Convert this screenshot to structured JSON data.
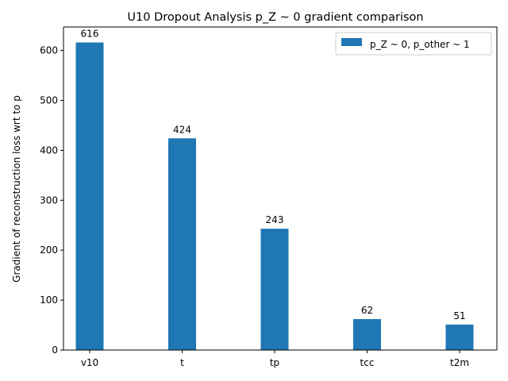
{
  "chart_data": {
    "type": "bar",
    "title": "U10 Dropout Analysis p_Z ~ 0 gradient comparison",
    "xlabel": "",
    "ylabel": "Gradient of reconstruction loss wrt to p",
    "categories": [
      "v10",
      "t",
      "tp",
      "tcc",
      "t2m"
    ],
    "series": [
      {
        "name": "p_Z ~ 0, p_other ~ 1",
        "values": [
          616,
          424,
          243,
          62,
          51
        ],
        "data_labels": [
          "616",
          "424",
          "243",
          "62",
          "51"
        ],
        "color": "#1f77b4"
      }
    ],
    "ylim": [
      0,
      647
    ],
    "yticks": [
      0,
      100,
      200,
      300,
      400,
      500,
      600
    ],
    "ytick_labels": [
      "0",
      "100",
      "200",
      "300",
      "400",
      "500",
      "600"
    ],
    "grid": false,
    "legend_position": "upper-right"
  }
}
